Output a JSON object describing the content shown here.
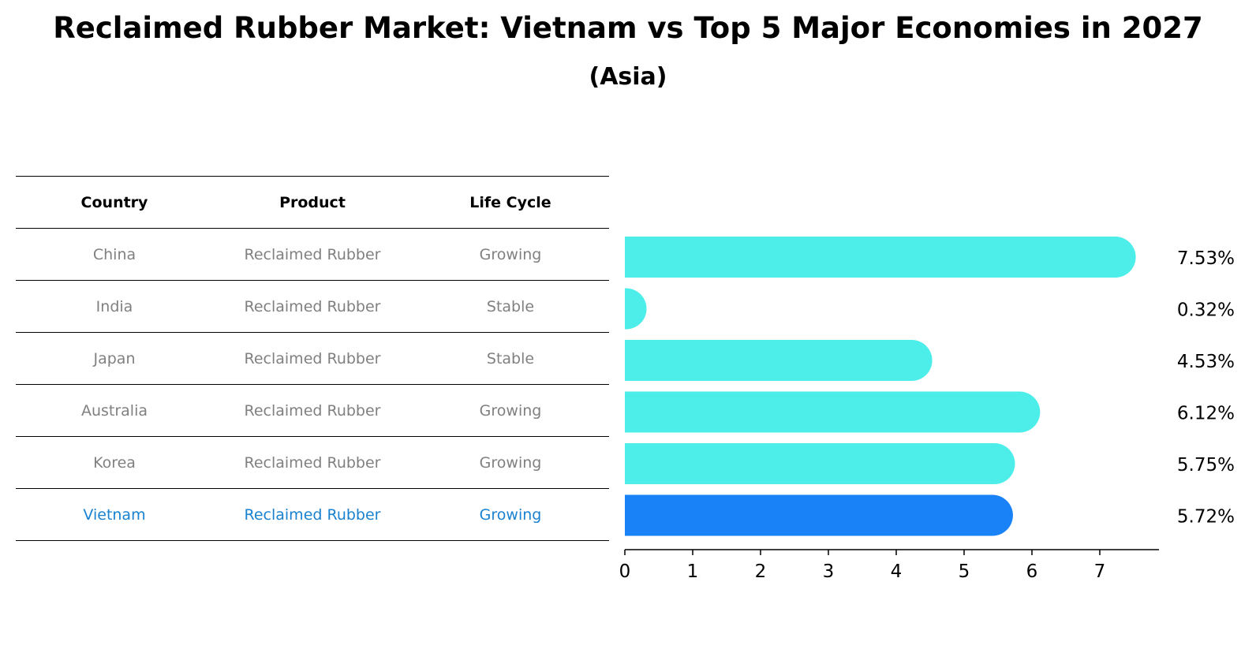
{
  "header": {
    "title": "Reclaimed Rubber Market: Vietnam vs Top 5 Major Economies in 2027",
    "subtitle": "(Asia)"
  },
  "table": {
    "columns": [
      "Country",
      "Product",
      "Life Cycle"
    ],
    "rows": [
      {
        "country": "China",
        "product": "Reclaimed Rubber",
        "life_cycle": "Growing"
      },
      {
        "country": "India",
        "product": "Reclaimed Rubber",
        "life_cycle": "Stable"
      },
      {
        "country": "Japan",
        "product": "Reclaimed Rubber",
        "life_cycle": "Stable"
      },
      {
        "country": "Australia",
        "product": "Reclaimed Rubber",
        "life_cycle": "Growing"
      },
      {
        "country": "Korea",
        "product": "Reclaimed Rubber",
        "life_cycle": "Growing"
      },
      {
        "country": "Vietnam",
        "product": "Reclaimed Rubber",
        "life_cycle": "Growing"
      }
    ]
  },
  "colors": {
    "bar": "#4deeea",
    "highlight_bar": "#1a82f7",
    "highlight_text": "#1a82d0",
    "muted_text": "#808080"
  },
  "chart_data": {
    "type": "bar",
    "orientation": "horizontal",
    "categories": [
      "China",
      "India",
      "Japan",
      "Australia",
      "Korea",
      "Vietnam"
    ],
    "values": [
      7.53,
      0.32,
      4.53,
      6.12,
      5.75,
      5.72
    ],
    "value_labels": [
      "7.53%",
      "0.32%",
      "4.53%",
      "6.12%",
      "5.75%",
      "5.72%"
    ],
    "highlight": "Vietnam",
    "xlim": [
      0,
      7.9
    ],
    "xticks": [
      0,
      1,
      2,
      3,
      4,
      5,
      6,
      7
    ],
    "grid": false
  }
}
